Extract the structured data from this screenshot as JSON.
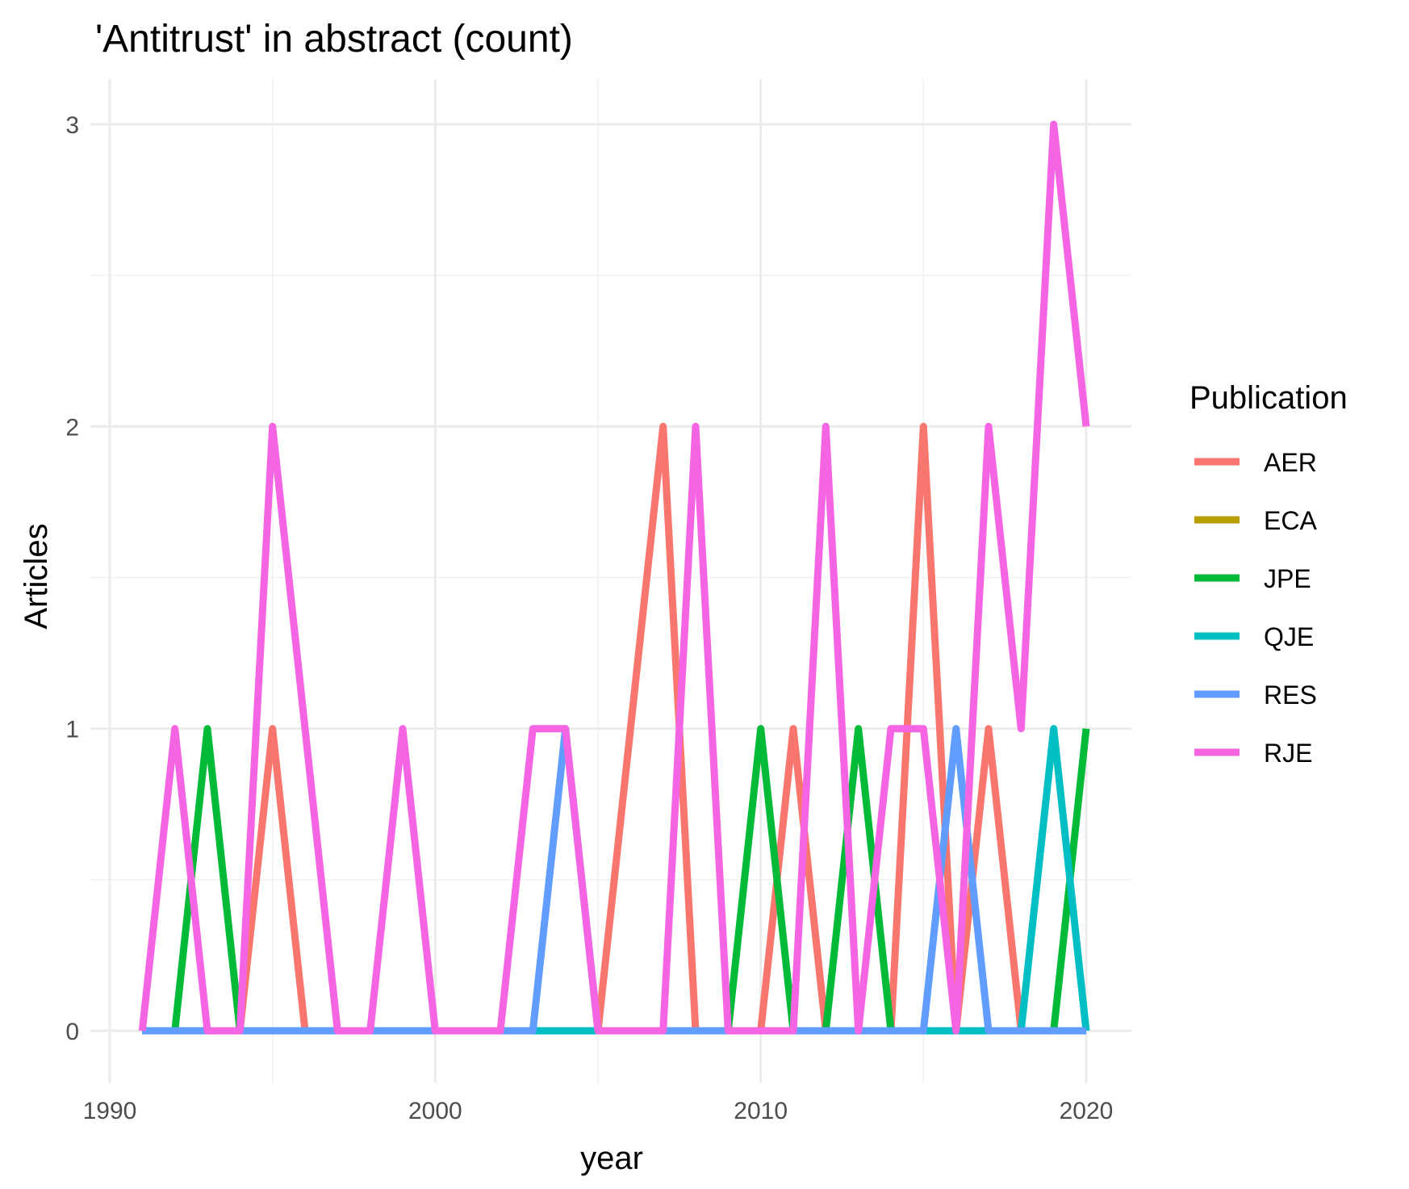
{
  "chart_data": {
    "type": "line",
    "title": "'Antitrust' in abstract (count)",
    "xlabel": "year",
    "ylabel": "Articles",
    "xlim": [
      1990,
      2020
    ],
    "ylim": [
      0,
      3
    ],
    "x_ticks": [
      "1990",
      "2000",
      "2010",
      "2020"
    ],
    "y_ticks": [
      "0",
      "1",
      "2",
      "3"
    ],
    "grid": true,
    "legend": {
      "title": "Publication",
      "position": "right"
    },
    "x": [
      1991,
      1992,
      1993,
      1994,
      1995,
      1996,
      1997,
      1998,
      1999,
      2000,
      2001,
      2002,
      2003,
      2004,
      2005,
      2006,
      2007,
      2008,
      2009,
      2010,
      2011,
      2012,
      2013,
      2014,
      2015,
      2016,
      2017,
      2018,
      2019,
      2020
    ],
    "series": [
      {
        "name": "AER",
        "color": "#F8766D",
        "values": [
          0,
          0,
          0,
          0,
          1,
          0,
          0,
          0,
          0,
          0,
          0,
          0,
          0,
          0,
          0,
          1,
          2,
          0,
          0,
          0,
          1,
          0,
          0,
          0,
          2,
          0,
          1,
          0,
          0,
          0
        ]
      },
      {
        "name": "ECA",
        "color": "#B79F00",
        "values": [
          0,
          0,
          0,
          0,
          0,
          0,
          0,
          0,
          0,
          0,
          0,
          0,
          0,
          0,
          0,
          0,
          0,
          0,
          0,
          0,
          0,
          0,
          0,
          0,
          0,
          0,
          0,
          0,
          0,
          0
        ]
      },
      {
        "name": "JPE",
        "color": "#00BA38",
        "values": [
          0,
          0,
          1,
          0,
          0,
          0,
          0,
          0,
          0,
          0,
          0,
          0,
          0,
          0,
          0,
          0,
          0,
          0,
          0,
          1,
          0,
          0,
          1,
          0,
          0,
          0,
          0,
          0,
          0,
          1
        ]
      },
      {
        "name": "QJE",
        "color": "#00BFC4",
        "values": [
          0,
          0,
          0,
          0,
          0,
          0,
          0,
          0,
          0,
          0,
          0,
          0,
          0,
          0,
          0,
          0,
          0,
          0,
          0,
          0,
          0,
          0,
          0,
          0,
          0,
          0,
          0,
          0,
          1,
          0
        ]
      },
      {
        "name": "RES",
        "color": "#619CFF",
        "values": [
          0,
          0,
          0,
          0,
          0,
          0,
          0,
          0,
          0,
          0,
          0,
          0,
          0,
          1,
          0,
          0,
          0,
          0,
          0,
          0,
          0,
          0,
          0,
          0,
          0,
          1,
          0,
          0,
          0,
          0
        ]
      },
      {
        "name": "RJE",
        "color": "#F564E3",
        "values": [
          0,
          1,
          0,
          0,
          2,
          1,
          0,
          0,
          1,
          0,
          0,
          0,
          1,
          1,
          0,
          0,
          0,
          2,
          0,
          0,
          0,
          2,
          0,
          1,
          1,
          0,
          2,
          1,
          3,
          2
        ]
      }
    ]
  }
}
